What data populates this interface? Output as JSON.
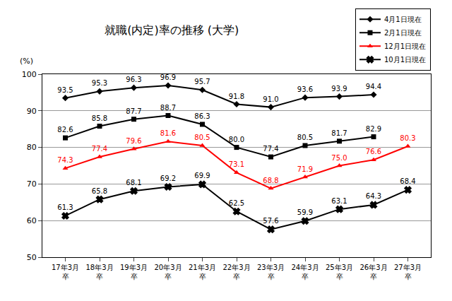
{
  "chart_data": {
    "type": "line",
    "title": "就職(内定)率の推移 (大学)",
    "y_label": "(%)",
    "categories": [
      "17年3月卒",
      "18年3月卒",
      "19年3月卒",
      "20年3月卒",
      "21年3月卒",
      "22年3月卒",
      "23年3月卒",
      "24年3月卒",
      "25年3月卒",
      "26年3月卒",
      "27年3月卒"
    ],
    "series": [
      {
        "name": "4月1日現在",
        "color": "#000000",
        "marker": "diamond",
        "line_style": "solid",
        "values": [
          93.5,
          95.3,
          96.3,
          96.9,
          95.7,
          91.8,
          91.0,
          93.6,
          93.9,
          94.4,
          null
        ],
        "value_labels": [
          "93.5",
          "95.3",
          "96.3",
          "96.9",
          "95.7",
          "91.8",
          "91.0",
          "93.6",
          "93.9",
          "94.4",
          null
        ]
      },
      {
        "name": "2月1日現在",
        "color": "#000000",
        "marker": "square",
        "line_style": "solid",
        "values": [
          82.6,
          85.8,
          87.7,
          88.7,
          86.3,
          80.0,
          77.4,
          80.5,
          81.7,
          82.9,
          null
        ],
        "value_labels": [
          "82.6",
          "85.8",
          "87.7",
          "88.7",
          "86.3",
          "80.0",
          "77.4",
          "80.5",
          "81.7",
          "82.9",
          null
        ]
      },
      {
        "name": "12月1日現在",
        "color": "#ff0000",
        "marker": "triangle-up",
        "line_style": "solid",
        "values": [
          74.3,
          77.4,
          79.6,
          81.6,
          80.5,
          73.1,
          68.8,
          71.9,
          75.0,
          76.6,
          80.3
        ],
        "value_labels": [
          "74.3",
          "77.4",
          "79.6",
          "81.6",
          "80.5",
          "73.1",
          "68.8",
          "71.9",
          "75.0",
          "76.6",
          "80.3"
        ]
      },
      {
        "name": "10月1日現在",
        "color": "#000000",
        "marker": "x",
        "line_style": "solid",
        "values": [
          61.3,
          65.8,
          68.1,
          69.2,
          69.9,
          62.5,
          57.6,
          59.9,
          63.1,
          64.3,
          68.4
        ],
        "value_labels": [
          "61.3",
          "65.8",
          "68.1",
          "69.2",
          "69.9",
          "62.5",
          "57.6",
          "59.9",
          "63.1",
          "64.3",
          "68.4"
        ]
      }
    ],
    "ylim": [
      50,
      100
    ],
    "yticks": [
      50,
      60,
      70,
      80,
      90,
      100
    ],
    "grid": true,
    "legend": "upper right",
    "data_labels": true
  }
}
